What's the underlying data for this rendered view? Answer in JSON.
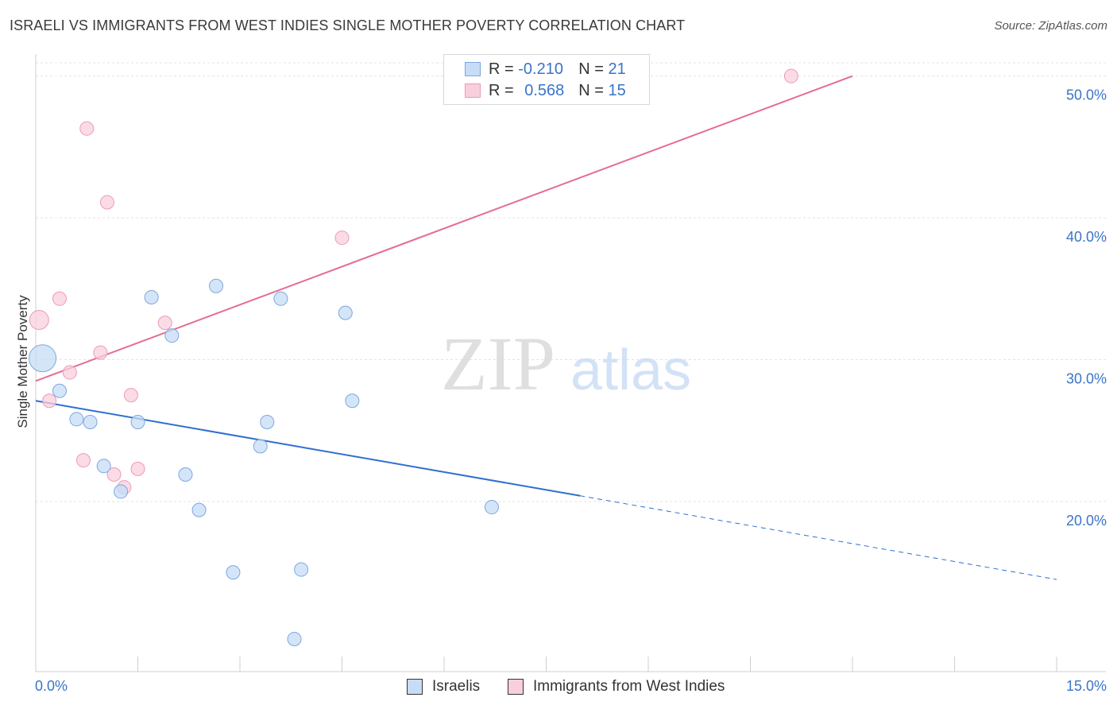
{
  "header": {
    "title": "ISRAELI VS IMMIGRANTS FROM WEST INDIES SINGLE MOTHER POVERTY CORRELATION CHART",
    "source": "Source: ZipAtlas.com"
  },
  "watermark": {
    "zip": "ZIP",
    "atlas": "atlas"
  },
  "legend": {
    "rows": [
      {
        "r_label": "R = ",
        "r_value": "-0.210",
        "n_label": "N = ",
        "n_value": "21"
      },
      {
        "r_label": "R = ",
        "r_value": "0.568",
        "n_label": "N = ",
        "n_value": "15"
      }
    ]
  },
  "bottom_legend": {
    "israelis": "Israelis",
    "west_indies": "Immigrants from West Indies"
  },
  "colors": {
    "israelis_fill": "#c7dcf6",
    "israelis_stroke": "#7aa8e0",
    "israelis_line": "#2f6fd0",
    "west_indies_fill": "#f9cfdd",
    "west_indies_stroke": "#ec9bb6",
    "west_indies_line": "#e46d96",
    "axis_label": "#3a74c8",
    "grid": "#e3e3e3"
  },
  "chart_data": {
    "type": "scatter",
    "ylabel": "Single Mother Poverty",
    "xlim": [
      0,
      15
    ],
    "ylim": [
      8,
      52
    ],
    "x_ticks": [
      "0.0%",
      "15.0%"
    ],
    "y_ticks": [
      {
        "value": 20,
        "label": "20.0%"
      },
      {
        "value": 30,
        "label": "30.0%"
      },
      {
        "value": 40,
        "label": "40.0%"
      },
      {
        "value": 50,
        "label": "50.0%"
      }
    ],
    "grid": true,
    "series": [
      {
        "name": "Israelis",
        "points": [
          {
            "x": 0.1,
            "y": 30.1,
            "size": "large"
          },
          {
            "x": 0.35,
            "y": 27.8
          },
          {
            "x": 0.6,
            "y": 25.8
          },
          {
            "x": 0.8,
            "y": 25.6
          },
          {
            "x": 1.0,
            "y": 22.5
          },
          {
            "x": 1.25,
            "y": 20.7
          },
          {
            "x": 1.5,
            "y": 25.6
          },
          {
            "x": 1.7,
            "y": 34.4
          },
          {
            "x": 2.0,
            "y": 31.7
          },
          {
            "x": 2.2,
            "y": 21.9
          },
          {
            "x": 2.4,
            "y": 19.4
          },
          {
            "x": 2.65,
            "y": 35.2
          },
          {
            "x": 2.9,
            "y": 15.0
          },
          {
            "x": 3.4,
            "y": 25.6
          },
          {
            "x": 3.3,
            "y": 23.9
          },
          {
            "x": 3.6,
            "y": 34.3
          },
          {
            "x": 3.9,
            "y": 15.2
          },
          {
            "x": 3.8,
            "y": 10.3
          },
          {
            "x": 4.55,
            "y": 33.3
          },
          {
            "x": 4.65,
            "y": 27.1
          },
          {
            "x": 6.7,
            "y": 19.6
          }
        ],
        "trend": {
          "x1": 0,
          "y1": 27.1,
          "x2": 8.0,
          "y2": 20.4,
          "dashed_to_x": 15,
          "dashed_to_y": 14.5
        }
      },
      {
        "name": "Immigrants from West Indies",
        "points": [
          {
            "x": 0.05,
            "y": 32.8,
            "size": "medium"
          },
          {
            "x": 0.2,
            "y": 27.1
          },
          {
            "x": 0.35,
            "y": 34.3
          },
          {
            "x": 0.5,
            "y": 29.1
          },
          {
            "x": 0.75,
            "y": 46.3
          },
          {
            "x": 0.7,
            "y": 22.9
          },
          {
            "x": 0.95,
            "y": 30.5
          },
          {
            "x": 1.05,
            "y": 41.1
          },
          {
            "x": 1.15,
            "y": 21.9
          },
          {
            "x": 1.3,
            "y": 21.0
          },
          {
            "x": 1.4,
            "y": 27.5
          },
          {
            "x": 1.5,
            "y": 22.3
          },
          {
            "x": 1.9,
            "y": 32.6
          },
          {
            "x": 4.5,
            "y": 38.6
          },
          {
            "x": 11.1,
            "y": 50.0
          }
        ],
        "trend": {
          "x1": 0,
          "y1": 28.5,
          "x2": 12.0,
          "y2": 50.0
        }
      }
    ]
  }
}
